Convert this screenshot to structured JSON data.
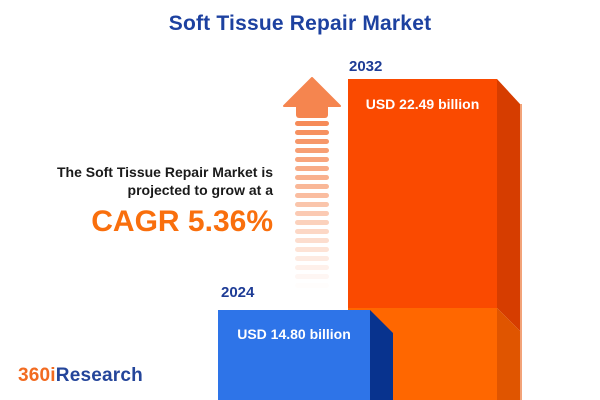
{
  "title": "Soft Tissue Repair Market",
  "headline": {
    "line1": "The Soft Tissue Repair Market is",
    "line2": "projected to grow at a",
    "cagr_label": "CAGR 5.36%"
  },
  "logo": {
    "prefix": "360i",
    "suffix": "Research"
  },
  "chart_data": {
    "type": "bar",
    "categories": [
      "2024",
      "2032"
    ],
    "values": [
      14.8,
      22.49
    ],
    "unit": "USD billion",
    "value_labels": [
      "USD 14.80 billion",
      "USD 22.49 billion"
    ],
    "cagr_percent": 5.36,
    "title": "Soft Tissue Repair Market",
    "orientation": "vertical",
    "style": "3d-cuboid-bars, bars cropped at bottom edge, dashed fading growth arrow pointing up between headline and 2032 bar",
    "legend": "none",
    "axes": "none"
  },
  "colors": {
    "title_blue": "#1d41a0",
    "year_label_blue": "#1e3c96",
    "headline_text": "#1a1a1a",
    "cagr_orange": "#f96f0d",
    "bar_2032_front_upper": "#fa4a00",
    "bar_2032_front_lower": "#ff6700",
    "bar_2032_side_upper": "#d63d00",
    "bar_2032_side_lower": "#e05500",
    "bar_2032_edge_highlight": "#f2a379",
    "bar_2024_front": "#2e74e8",
    "bar_2024_side": "#08338e",
    "arrow_orange": "#f5854f",
    "value_text": "#ffffff",
    "logo_orange": "#f26b21",
    "logo_blue": "#24459a",
    "background": "#ffffff"
  },
  "arrow": {
    "stripe_count": 19
  }
}
